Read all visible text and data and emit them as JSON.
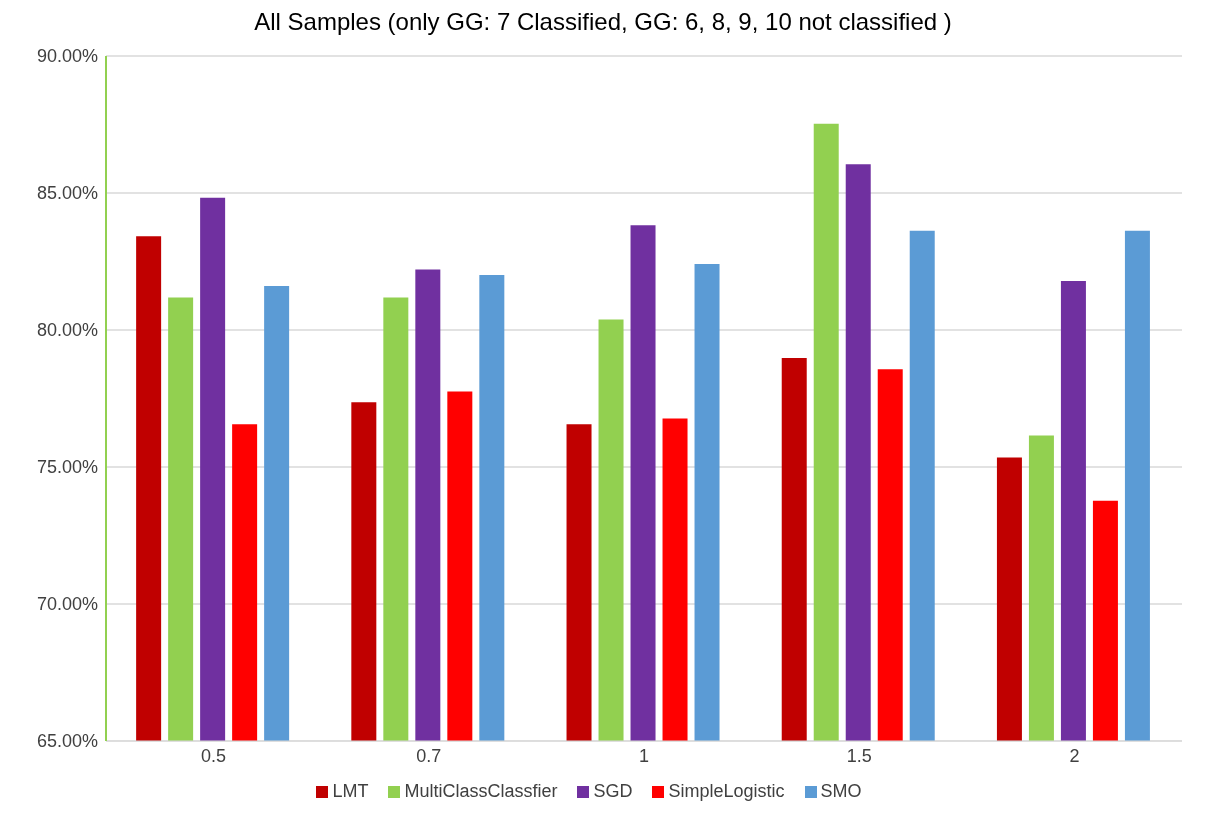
{
  "chart_data": {
    "type": "bar",
    "title": "All Samples (only GG: 7 Classified, GG: 6, 8, 9, 10 not classified )",
    "categories": [
      "0.5",
      "0.7",
      "1",
      "1.5",
      "2"
    ],
    "series": [
      {
        "name": "LMT",
        "color": "#c00000",
        "values": [
          83.42,
          77.36,
          76.56,
          78.98,
          75.35
        ]
      },
      {
        "name": "MultiClassClassfier",
        "color": "#92d050",
        "values": [
          81.19,
          81.19,
          80.38,
          87.53,
          76.15
        ]
      },
      {
        "name": "SGD",
        "color": "#7030a0",
        "values": [
          84.83,
          82.21,
          83.82,
          86.05,
          81.79
        ]
      },
      {
        "name": "SimpleLogistic",
        "color": "#ff0000",
        "values": [
          76.56,
          77.76,
          76.77,
          78.57,
          73.77
        ]
      },
      {
        "name": "SMO",
        "color": "#5b9bd5",
        "values": [
          81.61,
          82.01,
          82.41,
          83.62,
          83.62
        ]
      }
    ],
    "ylim": [
      65,
      90
    ],
    "yticks": [
      {
        "value": 65,
        "label": "65.00%"
      },
      {
        "value": 70,
        "label": "70.00%"
      },
      {
        "value": 75,
        "label": "75.00%"
      },
      {
        "value": 80,
        "label": "80.00%"
      },
      {
        "value": 85,
        "label": "85.00%"
      },
      {
        "value": 90,
        "label": "90.00%"
      }
    ],
    "grid": "y",
    "legend": "bottom"
  }
}
